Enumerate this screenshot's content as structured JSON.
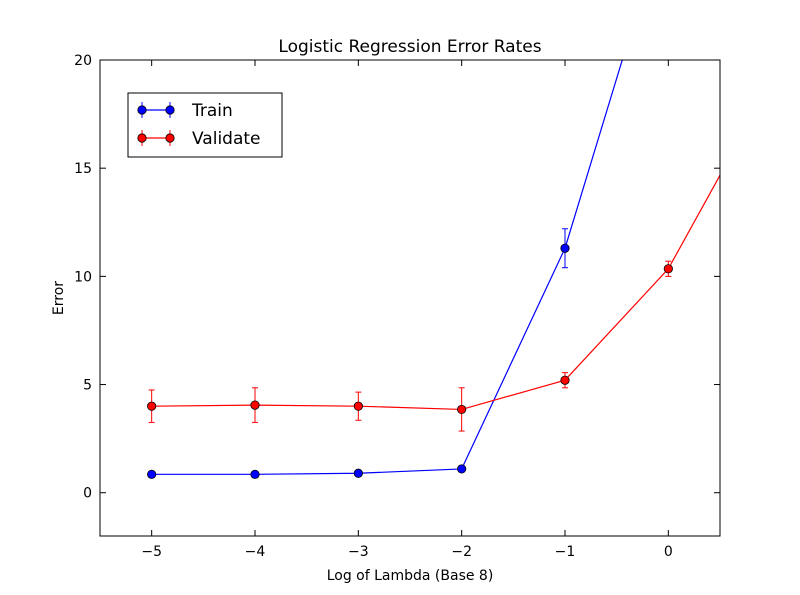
{
  "chart_data": {
    "type": "line",
    "title": "Logistic Regression Error Rates",
    "xlabel": "Log of Lambda (Base 8)",
    "ylabel": "Error",
    "xlim": [
      -5.5,
      0.5
    ],
    "ylim": [
      -2,
      20
    ],
    "xticks": [
      -5,
      -4,
      -3,
      -2,
      -1,
      0
    ],
    "xtick_labels": [
      "−5",
      "−4",
      "−3",
      "−2",
      "−1",
      "0"
    ],
    "yticks": [
      0,
      5,
      10,
      15,
      20
    ],
    "ytick_labels": [
      "0",
      "5",
      "10",
      "15",
      "20"
    ],
    "grid": false,
    "legend_position": "upper-left",
    "series": [
      {
        "name": "Train",
        "color": "#0000ff",
        "x": [
          -5,
          -4,
          -3,
          -2,
          -1,
          0
        ],
        "y": [
          0.85,
          0.85,
          0.9,
          1.1,
          11.3,
          27.0
        ],
        "yerr": [
          0.05,
          0.05,
          0.05,
          0.05,
          0.9,
          0.0
        ]
      },
      {
        "name": "Validate",
        "color": "#ff0000",
        "x": [
          -5,
          -4,
          -3,
          -2,
          -1,
          0,
          1
        ],
        "y": [
          4.0,
          4.05,
          4.0,
          3.85,
          5.2,
          10.35,
          19.0
        ],
        "yerr": [
          0.75,
          0.8,
          0.65,
          1.0,
          0.35,
          0.35,
          0.0
        ]
      }
    ]
  }
}
